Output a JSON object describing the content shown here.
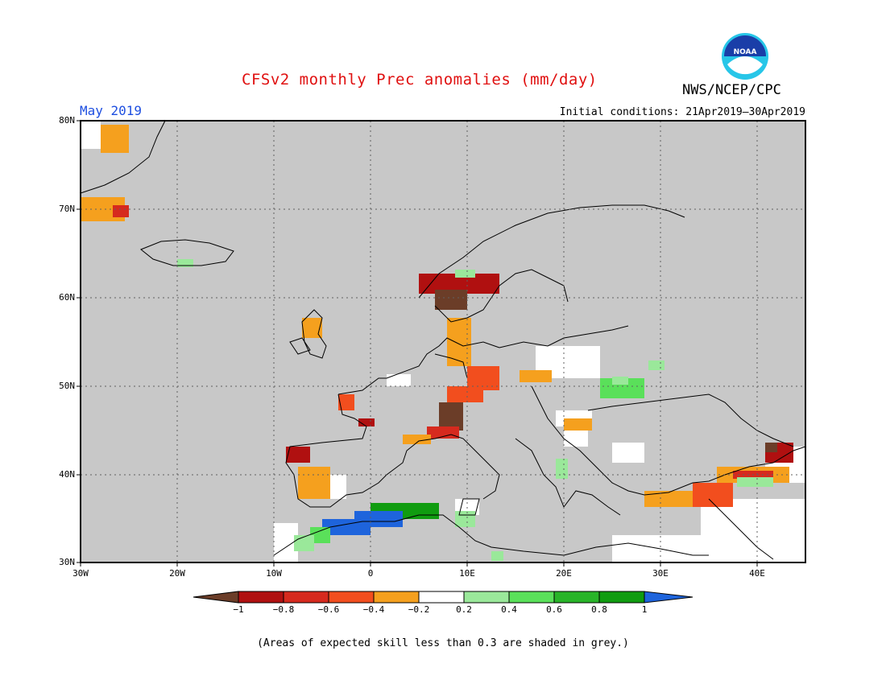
{
  "title": "CFSv2 monthly Prec anomalies (mm/day)",
  "organization": "NWS/NCEP/CPC",
  "logo_text": "NOAA",
  "month": "May 2019",
  "initial_conditions": "Initial conditions: 21Apr2019–30Apr2019",
  "lat_labels": [
    "80N",
    "70N",
    "60N",
    "50N",
    "40N",
    "30N"
  ],
  "lon_labels": [
    "30W",
    "20W",
    "10W",
    "0",
    "10E",
    "20E",
    "30E",
    "40E"
  ],
  "colorbar": {
    "tick_labels": [
      "−1",
      "−0.8",
      "−0.6",
      "−0.4",
      "−0.2",
      "0.2",
      "0.4",
      "0.6",
      "0.8",
      "1"
    ],
    "colors": [
      "#6b3d28",
      "#b01010",
      "#d62a1e",
      "#f24e1e",
      "#f5a01e",
      "#ffffff",
      "#9ae89a",
      "#5ae05a",
      "#28b428",
      "#109c10",
      "#1e64dc"
    ]
  },
  "note": "(Areas of expected skill less than 0.3 are shaded in grey.)",
  "colors": {
    "title": "#e01010",
    "month": "#1e4fe0",
    "grey_mask": "#c8c8c8"
  }
}
